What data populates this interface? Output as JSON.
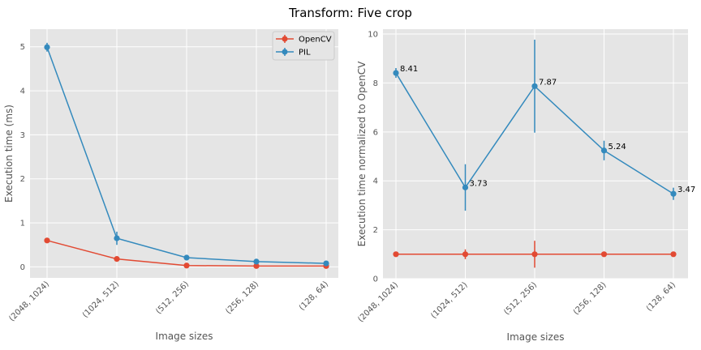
{
  "figure": {
    "title": "Transform: Five crop"
  },
  "chart_data": [
    {
      "type": "line",
      "xlabel": "Image sizes",
      "ylabel": "Execution time (ms)",
      "categories": [
        "(2048, 1024)",
        "(1024, 512)",
        "(512, 256)",
        "(256, 128)",
        "(128, 64)"
      ],
      "ylim": [
        -0.25,
        5.4
      ],
      "yticks": [
        "0",
        "1",
        "2",
        "3",
        "4",
        "5"
      ],
      "grid": true,
      "legend": {
        "placement": "top-right",
        "entries": [
          "OpenCV",
          "PIL"
        ]
      },
      "series": [
        {
          "name": "OpenCV",
          "color": "#E24A33",
          "values": [
            0.6,
            0.18,
            0.03,
            0.02,
            0.02
          ],
          "errors": [
            0.02,
            0.02,
            0.01,
            0.01,
            0.01
          ]
        },
        {
          "name": "PIL",
          "color": "#348ABD",
          "values": [
            4.99,
            0.65,
            0.21,
            0.12,
            0.08
          ],
          "errors": [
            0.1,
            0.15,
            0.02,
            0.02,
            0.02
          ]
        }
      ]
    },
    {
      "type": "line",
      "xlabel": "Image sizes",
      "ylabel": "Execution time normalized to OpenCV",
      "categories": [
        "(2048, 1024)",
        "(1024, 512)",
        "(512, 256)",
        "(256, 128)",
        "(128, 64)"
      ],
      "ylim": [
        0,
        10.2
      ],
      "yticks": [
        "0",
        "2",
        "4",
        "6",
        "8",
        "10"
      ],
      "grid": true,
      "series": [
        {
          "name": "OpenCV",
          "color": "#E24A33",
          "values": [
            1,
            1,
            1,
            1,
            1
          ],
          "errors": [
            0.05,
            0.2,
            0.55,
            0.05,
            0.05
          ]
        },
        {
          "name": "PIL",
          "color": "#348ABD",
          "values": [
            8.41,
            3.73,
            7.87,
            5.24,
            3.47
          ],
          "errors": [
            0.2,
            0.95,
            1.9,
            0.4,
            0.25
          ],
          "data_labels": [
            "8.41",
            "3.73",
            "7.87",
            "5.24",
            "3.47"
          ]
        }
      ]
    }
  ]
}
